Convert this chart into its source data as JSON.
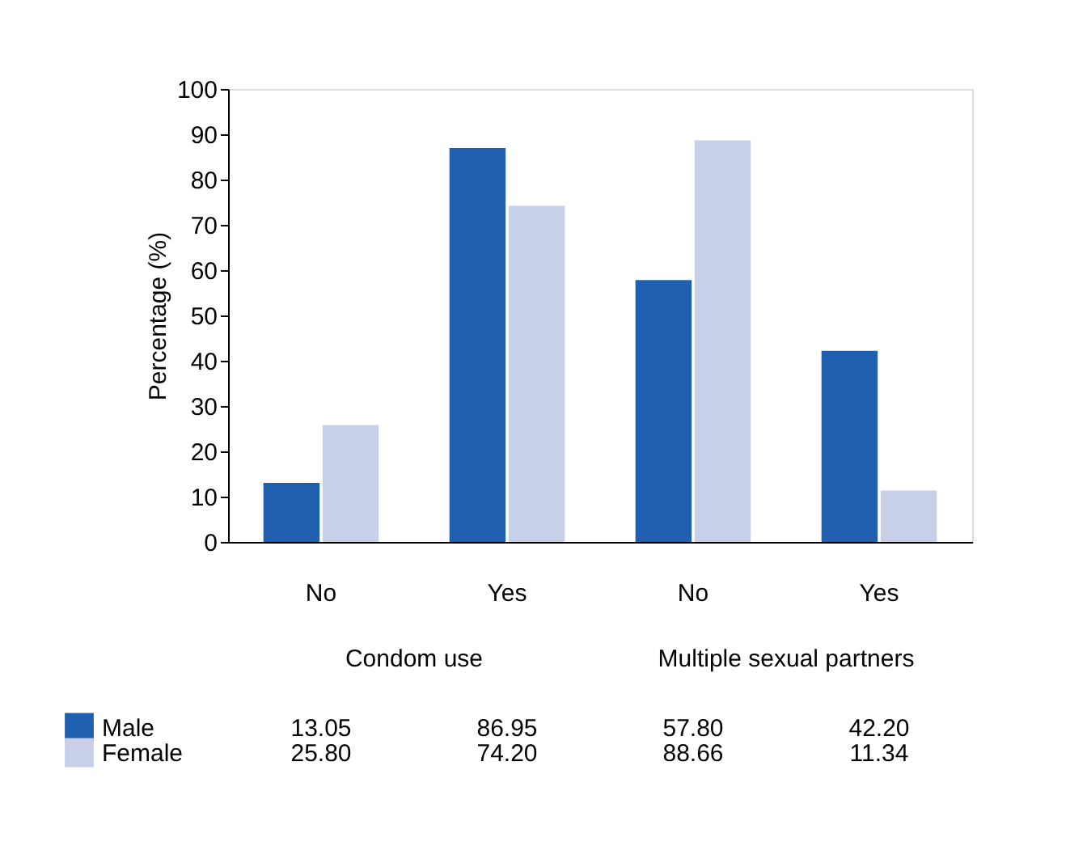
{
  "chart_data": {
    "type": "bar",
    "ylabel": "Percentage (%)",
    "categories": [
      "No",
      "Yes",
      "No",
      "Yes"
    ],
    "series": [
      {
        "name": "Male",
        "color": "#1f5fae",
        "values": [
          13.05,
          86.95,
          57.8,
          42.2
        ],
        "value_labels": [
          "13.05",
          "86.95",
          "57.80",
          "42.20"
        ]
      },
      {
        "name": "Female",
        "color": "#c8d0e8",
        "values": [
          25.8,
          74.2,
          88.66,
          11.34
        ],
        "value_labels": [
          "25.80",
          "74.20",
          "88.66",
          "11.34"
        ]
      }
    ],
    "annotations": [
      "Condom use",
      "Multiple sexual partners"
    ],
    "ylim": [
      0,
      100
    ],
    "yticks": [
      0,
      10,
      20,
      30,
      40,
      50,
      60,
      70,
      80,
      90,
      100
    ],
    "grid": false,
    "legend": "bottom"
  }
}
